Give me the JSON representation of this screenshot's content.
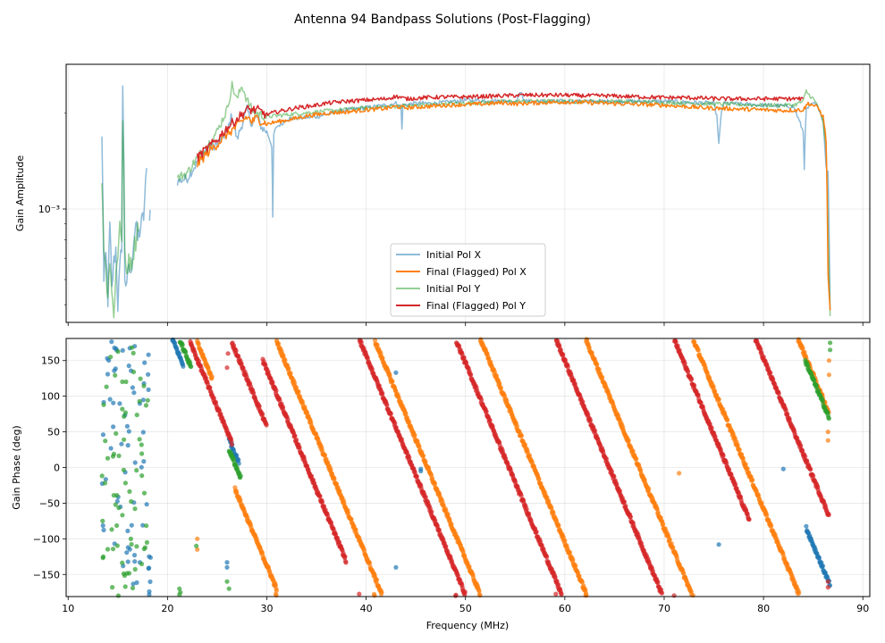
{
  "figure": {
    "title": "Antenna 94 Bandpass Solutions (Post-Flagging)"
  },
  "chart_data": [
    {
      "type": "line",
      "panel": "amplitude",
      "xlabel": "",
      "ylabel": "Gain Amplitude",
      "yscale": "log",
      "xlim": [
        9.8,
        90.7
      ],
      "ylim": [
        0.00044,
        0.00285
      ],
      "ytick_label": "10⁻³",
      "ytick_value": 0.001,
      "grid": true,
      "legend_position": "lower-center",
      "series": [
        {
          "name": "Initial Pol X",
          "color": "#1f77b4",
          "alpha": 0.5,
          "x": [
            13.4,
            13.6,
            13.8,
            14.0,
            14.2,
            14.4,
            14.6,
            14.8,
            15.0,
            15.2,
            15.4,
            15.5,
            15.7,
            15.9,
            16.1,
            16.3,
            16.5,
            16.8,
            17.0,
            17.3,
            17.6,
            18.0,
            null,
            18.2,
            18.3,
            null,
            21.0,
            22.0,
            23.0,
            24.0,
            25.0,
            26.0,
            26.5,
            27.0,
            28.0,
            28.5,
            29.0,
            29.5,
            30.0,
            30.5,
            30.6,
            30.7,
            31.0,
            31.5,
            32.0,
            35.0,
            38.0,
            40.0,
            42.0,
            43.0,
            43.5,
            43.6,
            43.7,
            45.0,
            47.0,
            50.0,
            55.0,
            55.5,
            56.0,
            60.0,
            65.0,
            70.0,
            75.0,
            75.3,
            75.5,
            75.8,
            76.0,
            80.0,
            83.0,
            84.0,
            84.1,
            84.3,
            85.0,
            85.5,
            86.0,
            86.3,
            86.5,
            86.7
          ],
          "y": [
            0.00165,
            0.00058,
            0.00071,
            0.00052,
            0.00088,
            0.00055,
            0.00068,
            0.00075,
            0.0005,
            0.00063,
            0.00078,
            0.00235,
            0.00062,
            0.00055,
            0.00068,
            0.0006,
            0.00075,
            0.0009,
            0.0008,
            0.00088,
            0.00095,
            0.00142,
            null,
            0.00098,
            0.00098,
            null,
            0.00122,
            0.00125,
            0.0014,
            0.00155,
            0.0016,
            0.00175,
            0.00198,
            0.00165,
            0.00205,
            0.00185,
            0.00195,
            0.0018,
            0.00175,
            0.00158,
            0.00093,
            0.00172,
            0.00182,
            0.00185,
            0.00192,
            0.00195,
            0.00205,
            0.00208,
            0.00212,
            0.00215,
            0.0021,
            0.00178,
            0.00212,
            0.00215,
            0.00215,
            0.0022,
            0.00218,
            0.00232,
            0.00218,
            0.00218,
            0.00218,
            0.00218,
            0.00215,
            0.00195,
            0.0016,
            0.00205,
            0.00215,
            0.00212,
            0.0021,
            0.00175,
            0.00135,
            0.00205,
            0.00215,
            0.0021,
            0.0019,
            0.00135,
            0.0013,
            0.00048
          ]
        },
        {
          "name": "Final (Flagged) Pol X",
          "color": "#ff7f0e",
          "alpha": 1.0,
          "x": [
            23.0,
            24.0,
            25.0,
            26.0,
            27.0,
            28.0,
            28.5,
            29.0,
            30.0,
            31.0,
            32.0,
            33.0,
            34.0,
            35.0,
            36.0,
            38.0,
            40.0,
            42.0,
            43.0,
            44.0,
            46.0,
            48.0,
            50.0,
            52.0,
            54.0,
            55.0,
            56.0,
            58.0,
            60.0,
            62.0,
            64.0,
            66.0,
            68.0,
            70.0,
            72.0,
            74.0,
            76.0,
            78.0,
            80.0,
            82.0,
            84.0,
            84.5,
            85.0,
            85.5,
            86.0,
            86.3,
            86.5,
            86.7
          ],
          "y": [
            0.00138,
            0.0015,
            0.0016,
            0.00172,
            0.00182,
            0.00195,
            0.00188,
            0.00193,
            0.00185,
            0.00188,
            0.0019,
            0.00193,
            0.00196,
            0.00198,
            0.002,
            0.00202,
            0.00205,
            0.00207,
            0.0021,
            0.00208,
            0.0021,
            0.00212,
            0.00213,
            0.00214,
            0.00216,
            0.00214,
            0.00215,
            0.00216,
            0.00217,
            0.00216,
            0.00215,
            0.00214,
            0.00213,
            0.00212,
            0.0021,
            0.00208,
            0.00207,
            0.00206,
            0.00205,
            0.00204,
            0.00205,
            0.00215,
            0.00212,
            0.00208,
            0.00195,
            0.00165,
            0.00062,
            0.00048
          ]
        },
        {
          "name": "Initial Pol Y",
          "color": "#2ca02c",
          "alpha": 0.5,
          "x": [
            13.4,
            13.6,
            13.8,
            14.0,
            14.2,
            14.4,
            14.6,
            14.8,
            15.0,
            15.2,
            15.4,
            15.5,
            15.7,
            15.9,
            16.1,
            16.3,
            16.5,
            16.8,
            17.0,
            17.2,
            null,
            21.0,
            22.0,
            23.0,
            24.0,
            25.0,
            26.0,
            26.5,
            27.0,
            27.5,
            28.0,
            28.5,
            29.0,
            30.0,
            32.0,
            35.0,
            40.0,
            45.0,
            50.0,
            55.0,
            60.0,
            65.0,
            70.0,
            75.0,
            80.0,
            83.0,
            84.0,
            84.3,
            84.5,
            85.0,
            85.5,
            86.0,
            86.3,
            86.5,
            86.7
          ],
          "y": [
            0.0012,
            0.00078,
            0.00064,
            0.00055,
            0.0007,
            0.00053,
            0.00048,
            0.00062,
            0.0007,
            0.00095,
            0.00078,
            0.002,
            0.0007,
            0.00062,
            0.00072,
            0.00066,
            0.00072,
            0.0008,
            0.00088,
            0.00095,
            null,
            0.00125,
            0.0013,
            0.00145,
            0.00158,
            0.00175,
            0.00205,
            0.00245,
            0.0022,
            0.00245,
            0.0022,
            0.00205,
            0.002,
            0.00195,
            0.00198,
            0.00202,
            0.00208,
            0.00212,
            0.00215,
            0.00218,
            0.00218,
            0.00218,
            0.00216,
            0.00214,
            0.00212,
            0.00212,
            0.00218,
            0.00235,
            0.0023,
            0.00222,
            0.0021,
            0.00185,
            0.00155,
            0.00085,
            0.00046
          ]
        },
        {
          "name": "Final (Flagged) Pol Y",
          "color": "#d62728",
          "alpha": 1.0,
          "x": [
            23.0,
            24.0,
            25.0,
            26.0,
            27.0,
            28.0,
            29.0,
            30.0,
            31.0,
            32.0,
            33.0,
            34.0,
            35.0,
            36.0,
            38.0,
            40.0,
            42.0,
            43.0,
            44.0,
            46.0,
            48.0,
            50.0,
            52.0,
            54.0,
            56.0,
            58.0,
            60.0,
            62.0,
            64.0,
            66.0,
            68.0,
            70.0,
            72.0,
            74.0,
            76.0,
            78.0,
            80.0,
            82.0,
            84.0
          ],
          "y": [
            0.00145,
            0.00155,
            0.00165,
            0.0018,
            0.00192,
            0.00205,
            0.00205,
            0.00198,
            0.00202,
            0.00205,
            0.00208,
            0.0021,
            0.00212,
            0.00215,
            0.00218,
            0.0022,
            0.00222,
            0.00226,
            0.00222,
            0.00224,
            0.00225,
            0.00225,
            0.00226,
            0.00227,
            0.00228,
            0.00228,
            0.00228,
            0.00227,
            0.00227,
            0.00226,
            0.00225,
            0.00224,
            0.00224,
            0.00223,
            0.00222,
            0.00222,
            0.00222,
            0.00222,
            0.00222
          ]
        }
      ]
    },
    {
      "type": "scatter",
      "panel": "phase",
      "xlabel": "Frequency (MHz)",
      "ylabel": "Gain Phase (deg)",
      "xlim": [
        9.8,
        90.7
      ],
      "ylim": [
        -181,
        181
      ],
      "xticks": [
        10,
        20,
        30,
        40,
        50,
        60,
        70,
        80,
        90
      ],
      "yticks": [
        -150,
        -100,
        -50,
        0,
        50,
        100,
        150
      ],
      "grid": true,
      "phase_slope_deg_per_mhz": -33.5,
      "series": [
        {
          "name": "Initial Pol X",
          "color": "#1f77b4",
          "wraps": [
            {
              "start_mhz": 20.5,
              "end_mhz": 21.6,
              "phase_at_start": 180
            },
            {
              "start_mhz": 26.2,
              "end_mhz": 27.2,
              "phase_at_start": 40
            },
            {
              "start_mhz": 84.3,
              "end_mhz": 86.7,
              "phase_at_start": -85
            }
          ],
          "random_cluster": {
            "start_mhz": 13.4,
            "end_mhz": 18.3,
            "phase_min": -180,
            "phase_max": 180,
            "points": 70
          },
          "isolated_points": [
            [
              43.0,
              133
            ],
            [
              43.0,
              -140
            ],
            [
              45.5,
              -5
            ],
            [
              45.5,
              -2
            ],
            [
              75.5,
              -108
            ],
            [
              82.0,
              -2
            ],
            [
              26.0,
              -140
            ],
            [
              26.0,
              -133
            ],
            [
              30.8,
              -165
            ]
          ]
        },
        {
          "name": "Final (Flagged) Pol X",
          "color": "#ff7f0e",
          "wraps": [
            {
              "start_mhz": 23.0,
              "end_mhz": 24.5,
              "phase_at_start": 175
            },
            {
              "start_mhz": 26.8,
              "end_mhz": 31.0,
              "phase_at_start": -30
            },
            {
              "start_mhz": 30.9,
              "end_mhz": 41.6,
              "phase_at_start": 180
            },
            {
              "start_mhz": 40.8,
              "end_mhz": 51.5,
              "phase_at_start": 180
            },
            {
              "start_mhz": 51.5,
              "end_mhz": 62.2,
              "phase_at_start": 180
            },
            {
              "start_mhz": 62.1,
              "end_mhz": 72.8,
              "phase_at_start": 180
            },
            {
              "start_mhz": 72.9,
              "end_mhz": 83.6,
              "phase_at_start": 180
            },
            {
              "start_mhz": 83.5,
              "end_mhz": 86.6,
              "phase_at_start": 180
            }
          ],
          "isolated_points": [
            [
              23.0,
              -100
            ],
            [
              23.0,
              -115
            ],
            [
              71.5,
              -8
            ],
            [
              86.5,
              50
            ],
            [
              86.5,
              38
            ],
            [
              86.6,
              130
            ],
            [
              86.6,
              150
            ]
          ]
        },
        {
          "name": "Initial Pol Y",
          "color": "#2ca02c",
          "wraps": [
            {
              "start_mhz": 21.2,
              "end_mhz": 22.4,
              "phase_at_start": 180
            },
            {
              "start_mhz": 26.2,
              "end_mhz": 27.4,
              "phase_at_start": 25
            },
            {
              "start_mhz": 84.2,
              "end_mhz": 86.6,
              "phase_at_start": 150
            }
          ],
          "random_cluster": {
            "start_mhz": 13.4,
            "end_mhz": 18.3,
            "phase_min": -180,
            "phase_max": 180,
            "points": 70
          },
          "isolated_points": [
            [
              21.2,
              -170
            ],
            [
              21.3,
              -175
            ],
            [
              22.9,
              -110
            ],
            [
              26.0,
              -160
            ],
            [
              26.2,
              -170
            ],
            [
              86.7,
              175
            ],
            [
              86.7,
              165
            ]
          ]
        },
        {
          "name": "Final (Flagged) Pol Y",
          "color": "#d62728",
          "wraps": [
            {
              "start_mhz": 22.3,
              "end_mhz": 26.5,
              "phase_at_start": 175
            },
            {
              "start_mhz": 26.5,
              "end_mhz": 30.0,
              "phase_at_start": 175
            },
            {
              "start_mhz": 29.6,
              "end_mhz": 38.0,
              "phase_at_start": 150
            },
            {
              "start_mhz": 39.3,
              "end_mhz": 50.0,
              "phase_at_start": 180
            },
            {
              "start_mhz": 49.0,
              "end_mhz": 59.7,
              "phase_at_start": 180
            },
            {
              "start_mhz": 59.1,
              "end_mhz": 69.8,
              "phase_at_start": 180
            },
            {
              "start_mhz": 71.0,
              "end_mhz": 78.6,
              "phase_at_start": 180
            },
            {
              "start_mhz": 79.2,
              "end_mhz": 86.6,
              "phase_at_start": 180
            }
          ],
          "isolated_points": [
            [
              26.0,
              140
            ],
            [
              26.1,
              160
            ],
            [
              86.5,
              -160
            ],
            [
              86.5,
              -168
            ]
          ]
        }
      ]
    }
  ]
}
